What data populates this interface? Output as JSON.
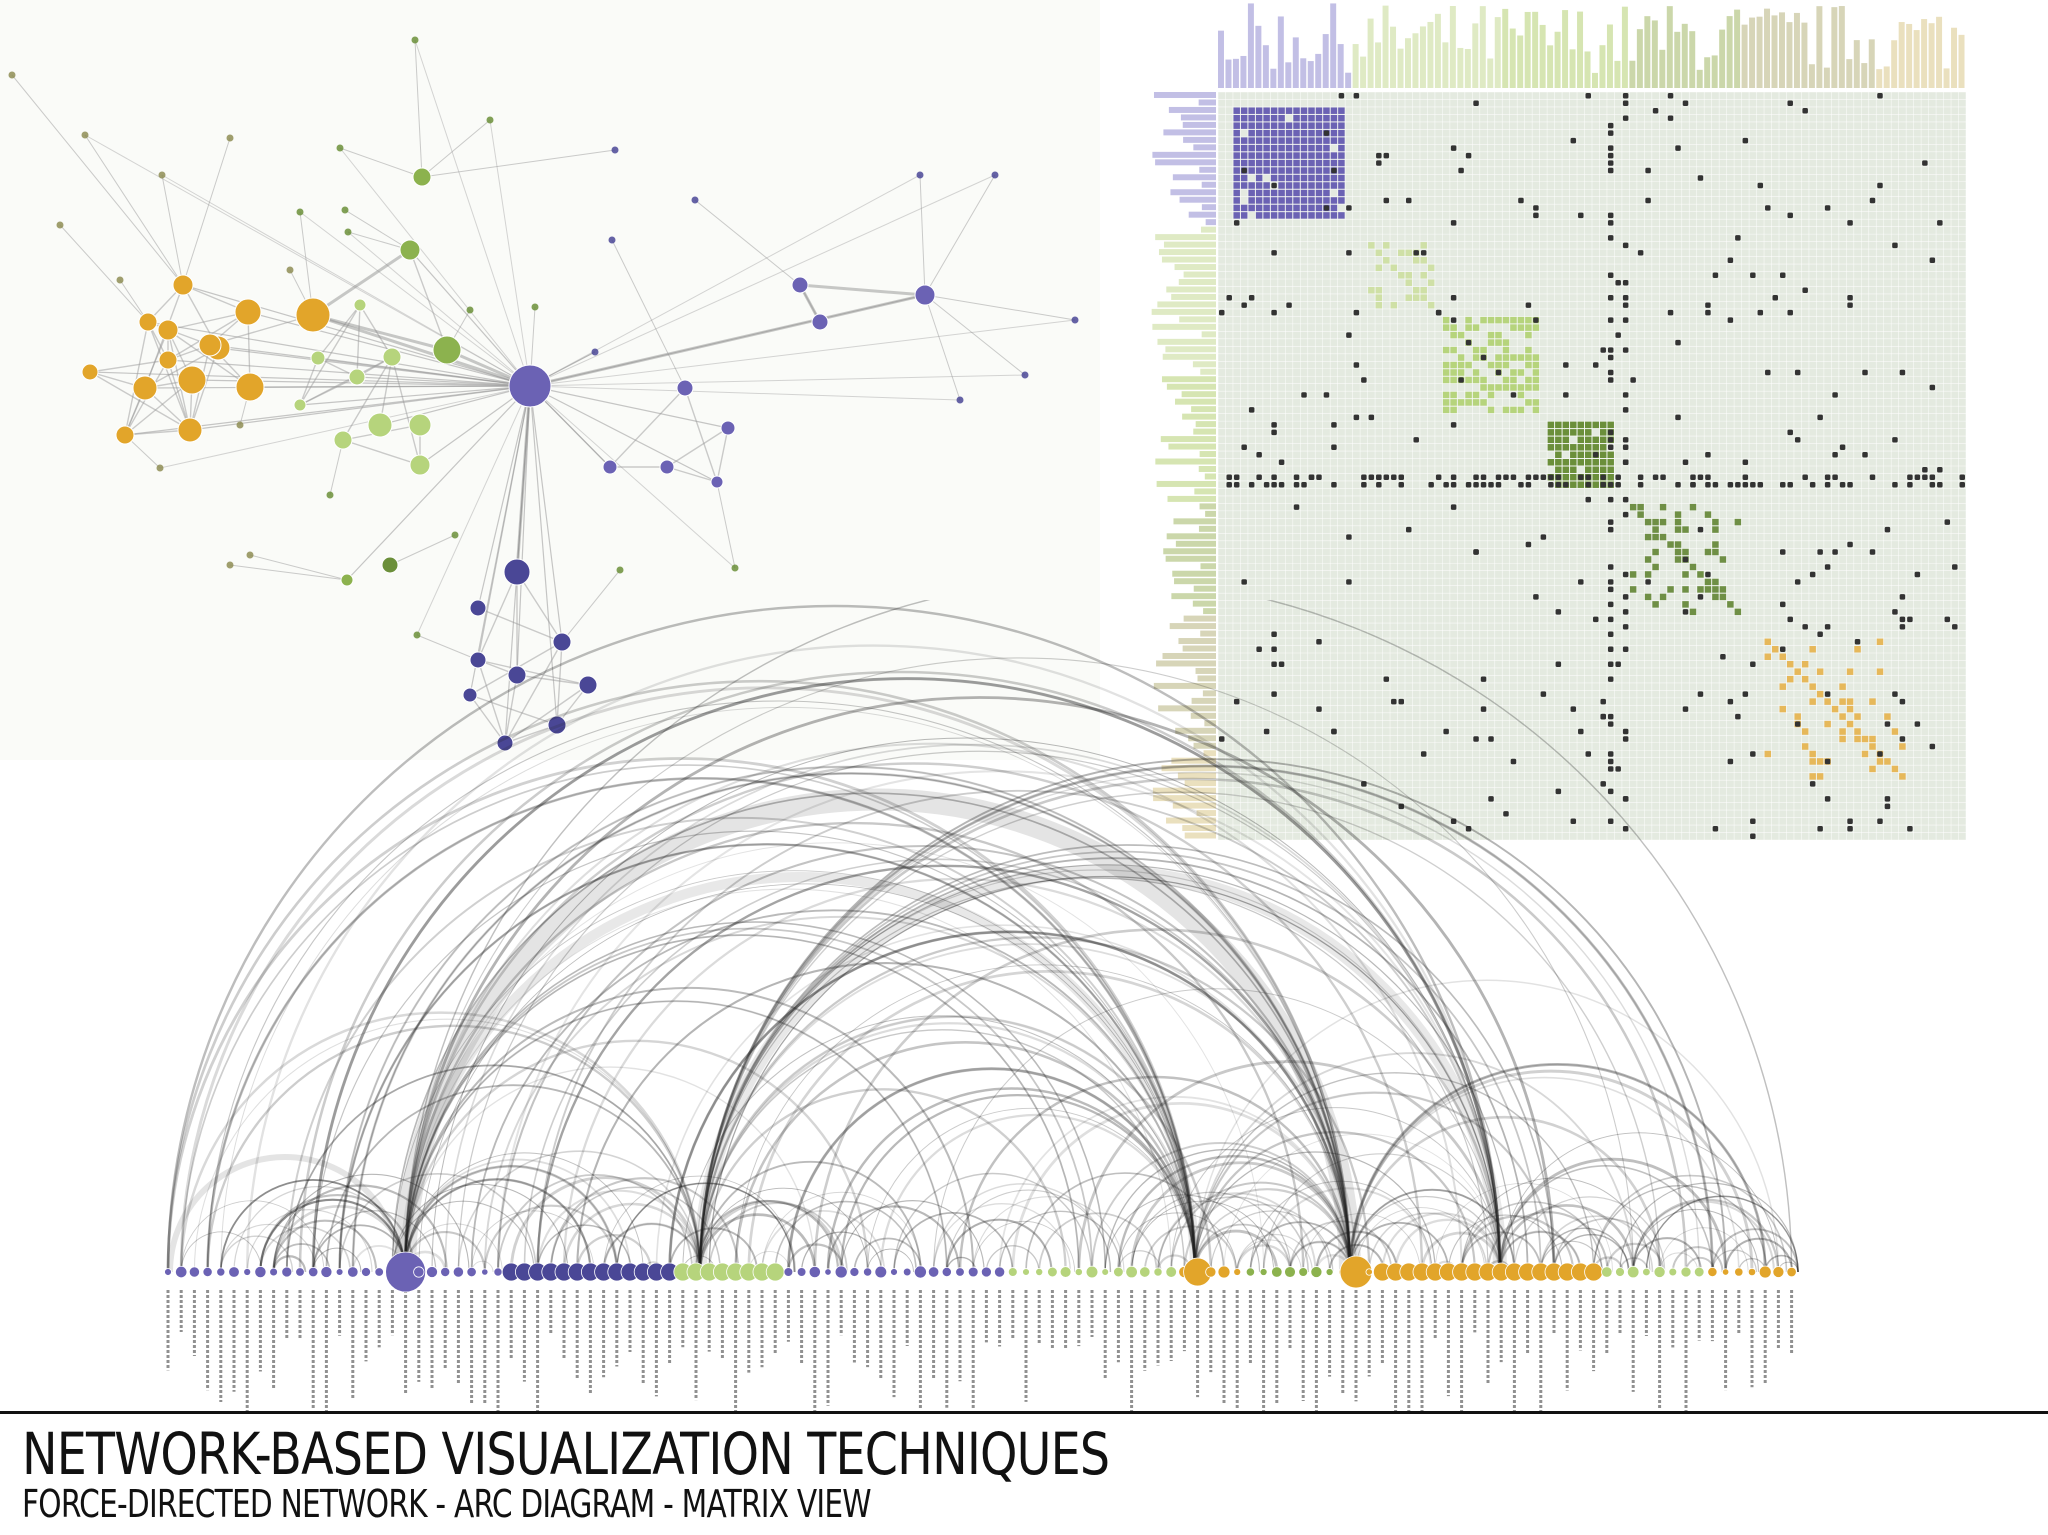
{
  "title": "NETWORK-BASED VISUALIZATION TECHNIQUES",
  "subtitle": "FORCE-DIRECTED NETWORK  -  ARC DIAGRAM  -  MATRIX VIEW",
  "colors": {
    "purple": "#6b62b4",
    "dark_purple": "#4a4796",
    "orange": "#e2a52a",
    "light_green": "#b6d47c",
    "green": "#8cb24e",
    "dark_green": "#6b8f3a",
    "olive": "#8e8d55",
    "edge": "#999999",
    "arc": "#222222",
    "matrix_bg": "#e4eae0",
    "matrix_grid": "#ffffff",
    "matrix_dot": "#333333"
  },
  "panels": [
    "force-directed network",
    "matrix view",
    "arc diagram"
  ]
}
